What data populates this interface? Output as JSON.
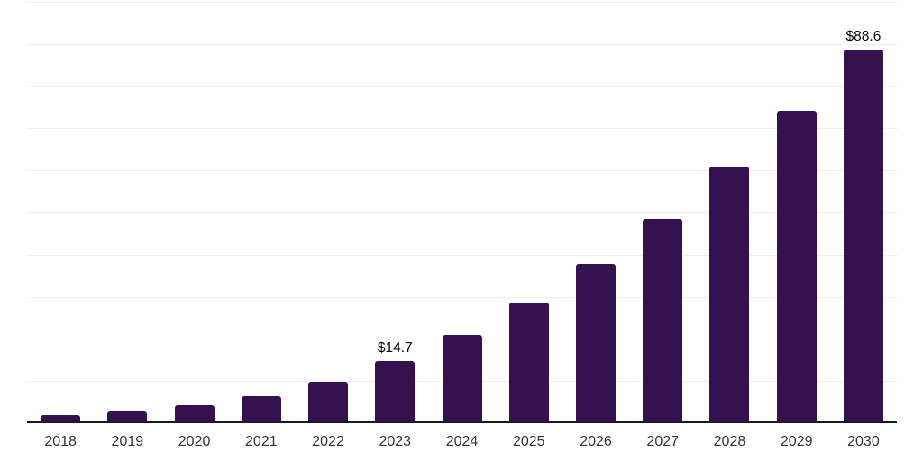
{
  "chart_data": {
    "type": "bar",
    "categories": [
      "2018",
      "2019",
      "2020",
      "2021",
      "2022",
      "2023",
      "2024",
      "2025",
      "2026",
      "2027",
      "2028",
      "2029",
      "2030"
    ],
    "values": [
      2.0,
      2.7,
      4.3,
      6.4,
      9.9,
      14.7,
      20.9,
      28.6,
      37.9,
      48.6,
      61.0,
      74.2,
      88.6
    ],
    "annotations": [
      {
        "category": "2023",
        "text": "$14.7"
      },
      {
        "category": "2030",
        "text": "$88.6"
      }
    ],
    "title": "",
    "xlabel": "",
    "ylabel": "",
    "ylim": [
      0,
      100
    ],
    "gridline_interval": 10,
    "grid": "on",
    "legend": "none",
    "colors": {
      "bar": "#36114f",
      "gridline": "#efefef",
      "axis_line": "#1c1922",
      "tick_label": "#333333",
      "data_label": "#000000",
      "background": "#ffffff"
    }
  }
}
